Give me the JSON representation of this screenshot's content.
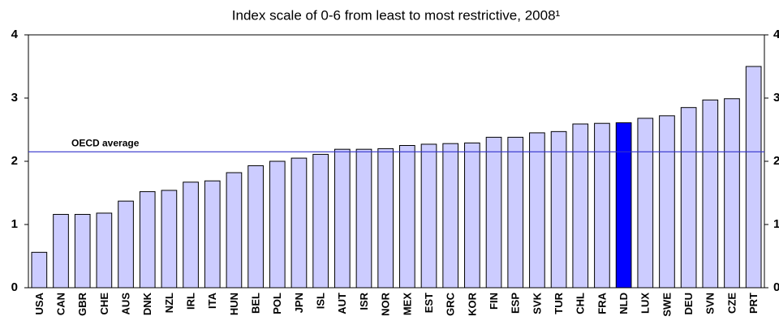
{
  "chart_data": {
    "type": "bar",
    "title": "Index scale of 0-6 from least to most restrictive, 2008¹",
    "categories": [
      "USA",
      "CAN",
      "GBR",
      "CHE",
      "AUS",
      "DNK",
      "NZL",
      "IRL",
      "ITA",
      "HUN",
      "BEL",
      "POL",
      "JPN",
      "ISL",
      "AUT",
      "ISR",
      "NOR",
      "MEX",
      "EST",
      "GRC",
      "KOR",
      "FIN",
      "ESP",
      "SVK",
      "TUR",
      "CHL",
      "FRA",
      "NLD",
      "LUX",
      "SWE",
      "DEU",
      "SVN",
      "CZE",
      "PRT"
    ],
    "values": [
      0.56,
      1.16,
      1.16,
      1.18,
      1.37,
      1.52,
      1.54,
      1.67,
      1.69,
      1.82,
      1.93,
      2.0,
      2.05,
      2.11,
      2.19,
      2.19,
      2.2,
      2.25,
      2.27,
      2.28,
      2.29,
      2.38,
      2.38,
      2.45,
      2.47,
      2.59,
      2.6,
      2.61,
      2.68,
      2.72,
      2.85,
      2.97,
      2.99,
      3.5
    ],
    "colors": [
      "#ccccff",
      "#ccccff",
      "#ccccff",
      "#ccccff",
      "#ccccff",
      "#ccccff",
      "#ccccff",
      "#ccccff",
      "#ccccff",
      "#ccccff",
      "#ccccff",
      "#ccccff",
      "#ccccff",
      "#ccccff",
      "#ccccff",
      "#ccccff",
      "#ccccff",
      "#ccccff",
      "#ccccff",
      "#ccccff",
      "#ccccff",
      "#ccccff",
      "#ccccff",
      "#ccccff",
      "#ccccff",
      "#ccccff",
      "#ccccff",
      "#0000ff",
      "#ccccff",
      "#ccccff",
      "#ccccff",
      "#ccccff",
      "#ccccff",
      "#ccccff"
    ],
    "ylim": [
      0,
      4
    ],
    "yticks": [
      0,
      1,
      2,
      3,
      4
    ],
    "y2lim": [
      0,
      4
    ],
    "y2ticks": [
      0,
      1,
      2,
      3,
      4
    ],
    "reference_line": {
      "label": "OECD average",
      "value": 2.15,
      "color": "#3333cc"
    }
  }
}
